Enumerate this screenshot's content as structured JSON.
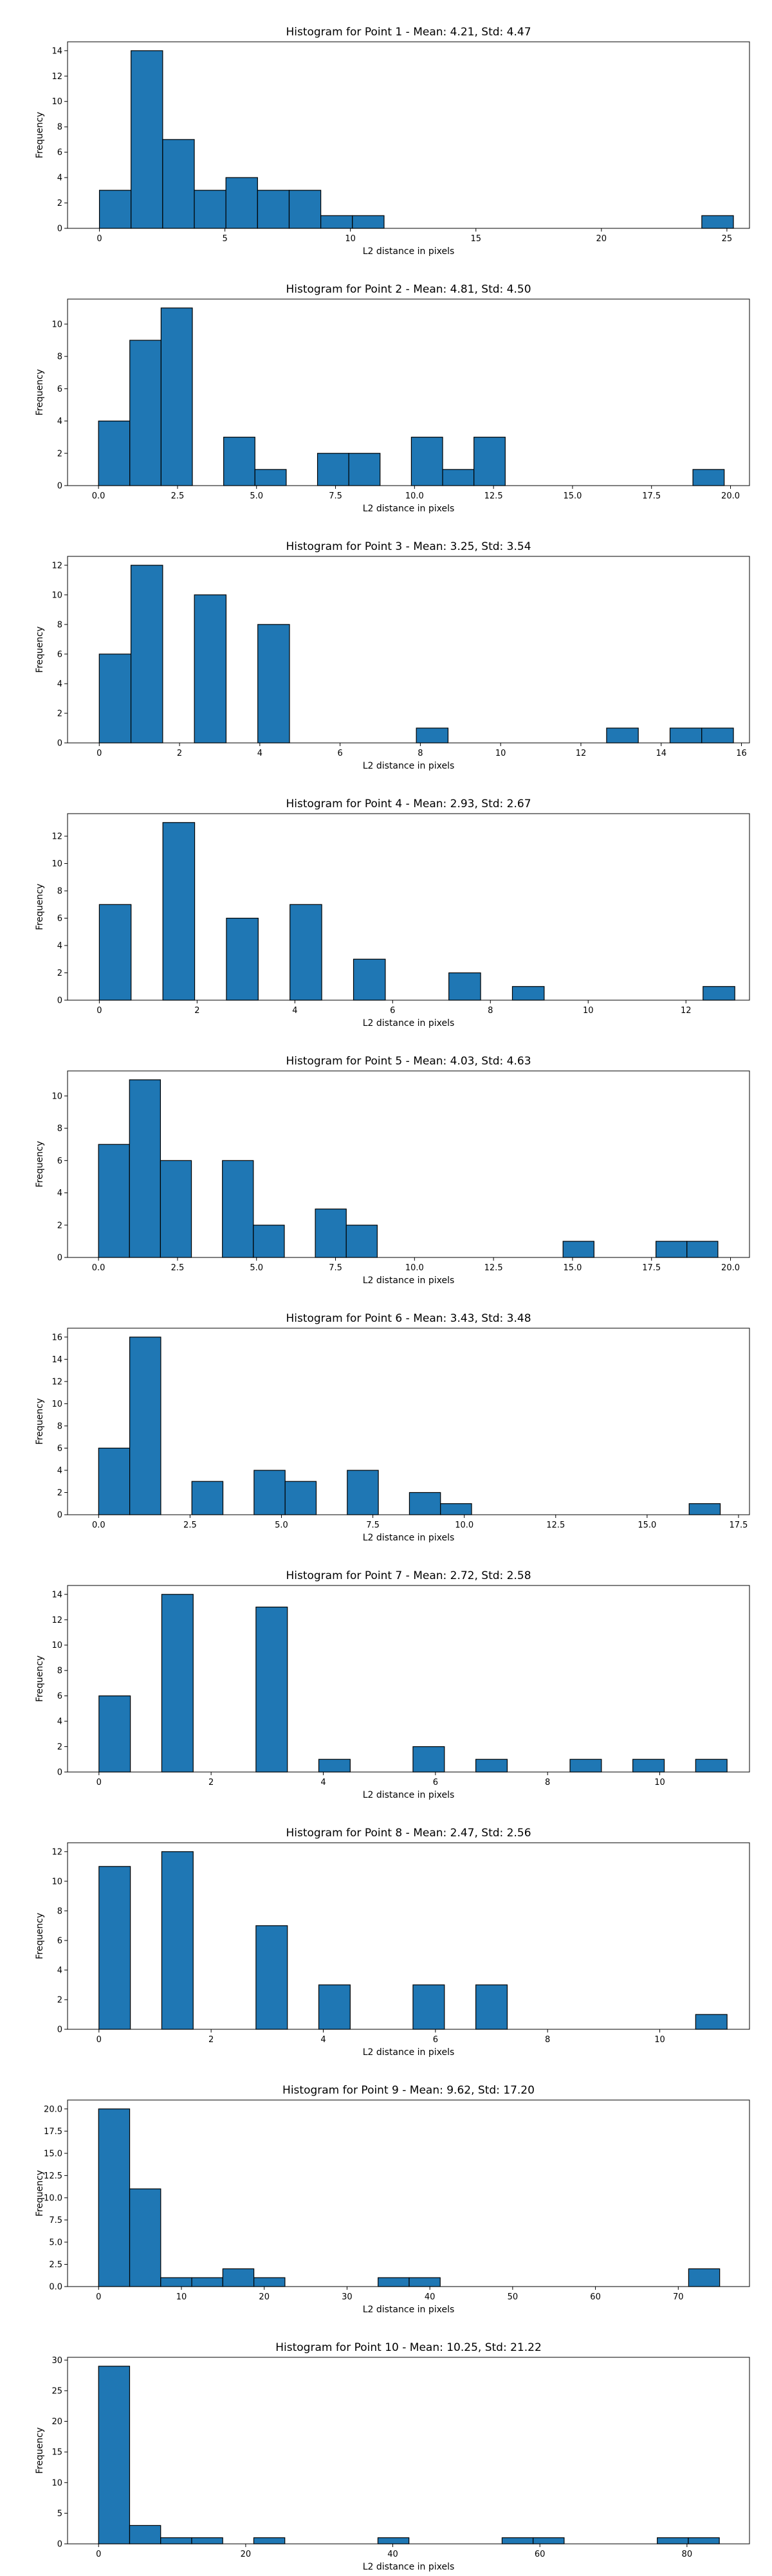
{
  "bar_color": "#1f77b4",
  "edge_color": "#000000",
  "chart_data": [
    {
      "type": "bar",
      "title": "Histogram for Point 1 - Mean: 4.21, Std: 4.47",
      "xlabel": "L2 distance in pixels",
      "ylabel": "Frequency",
      "xlim": [
        -1.27,
        25.9
      ],
      "ylim": [
        0,
        14.7
      ],
      "xticks": [
        0,
        5,
        10,
        15,
        20,
        25
      ],
      "xtick_labels": [
        "0",
        "5",
        "10",
        "15",
        "20",
        "25"
      ],
      "yticks": [
        0,
        2,
        4,
        6,
        8,
        10,
        12,
        14
      ],
      "ytick_labels": [
        "0",
        "2",
        "4",
        "6",
        "8",
        "10",
        "12",
        "14"
      ],
      "bins": [
        [
          0.0,
          1.26,
          3
        ],
        [
          1.26,
          2.52,
          14
        ],
        [
          2.52,
          3.78,
          7
        ],
        [
          3.78,
          5.04,
          3
        ],
        [
          5.04,
          6.3,
          4
        ],
        [
          6.3,
          7.56,
          3
        ],
        [
          7.56,
          8.82,
          3
        ],
        [
          8.82,
          10.08,
          1
        ],
        [
          10.08,
          11.34,
          1
        ],
        [
          24.0,
          25.26,
          1
        ]
      ]
    },
    {
      "type": "bar",
      "title": "Histogram for Point 2 - Mean: 4.81, Std: 4.50",
      "xlabel": "L2 distance in pixels",
      "ylabel": "Frequency",
      "xlim": [
        -0.98,
        20.6
      ],
      "ylim": [
        0,
        11.55
      ],
      "xticks": [
        0,
        2.5,
        5,
        7.5,
        10,
        12.5,
        15,
        17.5,
        20
      ],
      "xtick_labels": [
        "0.0",
        "2.5",
        "5.0",
        "7.5",
        "10.0",
        "12.5",
        "15.0",
        "17.5",
        "20.0"
      ],
      "yticks": [
        0,
        2,
        4,
        6,
        8,
        10
      ],
      "ytick_labels": [
        "0",
        "2",
        "4",
        "6",
        "8",
        "10"
      ],
      "bins": [
        [
          0.0,
          0.99,
          4
        ],
        [
          0.99,
          1.98,
          9
        ],
        [
          1.98,
          2.97,
          11
        ],
        [
          3.96,
          4.95,
          3
        ],
        [
          4.95,
          5.94,
          1
        ],
        [
          6.93,
          7.92,
          2
        ],
        [
          7.92,
          8.91,
          2
        ],
        [
          9.9,
          10.89,
          3
        ],
        [
          10.89,
          11.88,
          1
        ],
        [
          11.88,
          12.87,
          3
        ],
        [
          18.81,
          19.8,
          1
        ]
      ]
    },
    {
      "type": "bar",
      "title": "Histogram for Point 3 - Mean: 3.25, Std: 3.54",
      "xlabel": "L2 distance in pixels",
      "ylabel": "Frequency",
      "xlim": [
        -0.79,
        16.2
      ],
      "ylim": [
        0,
        12.6
      ],
      "xticks": [
        0,
        2,
        4,
        6,
        8,
        10,
        12,
        14,
        16
      ],
      "xtick_labels": [
        "0",
        "2",
        "4",
        "6",
        "8",
        "10",
        "12",
        "14",
        "16"
      ],
      "yticks": [
        0,
        2,
        4,
        6,
        8,
        10,
        12
      ],
      "ytick_labels": [
        "0",
        "2",
        "4",
        "6",
        "8",
        "10",
        "12"
      ],
      "bins": [
        [
          0.0,
          0.79,
          6
        ],
        [
          0.79,
          1.58,
          12
        ],
        [
          2.37,
          3.16,
          10
        ],
        [
          3.95,
          4.74,
          8
        ],
        [
          7.9,
          8.69,
          1
        ],
        [
          12.64,
          13.43,
          1
        ],
        [
          14.22,
          15.01,
          1
        ],
        [
          15.01,
          15.8,
          1
        ]
      ]
    },
    {
      "type": "bar",
      "title": "Histogram for Point 4 - Mean: 2.93, Std: 2.67",
      "xlabel": "L2 distance in pixels",
      "ylabel": "Frequency",
      "xlim": [
        -0.65,
        13.3
      ],
      "ylim": [
        0,
        13.65
      ],
      "xticks": [
        0,
        2,
        4,
        6,
        8,
        10,
        12
      ],
      "xtick_labels": [
        "0",
        "2",
        "4",
        "6",
        "8",
        "10",
        "12"
      ],
      "yticks": [
        0,
        2,
        4,
        6,
        8,
        10,
        12
      ],
      "ytick_labels": [
        "0",
        "2",
        "4",
        "6",
        "8",
        "10",
        "12"
      ],
      "bins": [
        [
          0.0,
          0.65,
          7
        ],
        [
          1.3,
          1.95,
          13
        ],
        [
          2.6,
          3.25,
          6
        ],
        [
          3.9,
          4.55,
          7
        ],
        [
          5.2,
          5.85,
          3
        ],
        [
          7.15,
          7.8,
          2
        ],
        [
          8.45,
          9.1,
          1
        ],
        [
          12.35,
          13.0,
          1
        ]
      ]
    },
    {
      "type": "bar",
      "title": "Histogram for Point 5 - Mean: 4.03, Std: 4.63",
      "xlabel": "L2 distance in pixels",
      "ylabel": "Frequency",
      "xlim": [
        -0.98,
        20.6
      ],
      "ylim": [
        0,
        11.55
      ],
      "xticks": [
        0,
        2.5,
        5,
        7.5,
        10,
        12.5,
        15,
        17.5,
        20
      ],
      "xtick_labels": [
        "0.0",
        "2.5",
        "5.0",
        "7.5",
        "10.0",
        "12.5",
        "15.0",
        "17.5",
        "20.0"
      ],
      "yticks": [
        0,
        2,
        4,
        6,
        8,
        10
      ],
      "ytick_labels": [
        "0",
        "2",
        "4",
        "6",
        "8",
        "10"
      ],
      "bins": [
        [
          0.0,
          0.98,
          7
        ],
        [
          0.98,
          1.96,
          11
        ],
        [
          1.96,
          2.94,
          6
        ],
        [
          3.92,
          4.9,
          6
        ],
        [
          4.9,
          5.88,
          2
        ],
        [
          6.86,
          7.84,
          3
        ],
        [
          7.84,
          8.82,
          2
        ],
        [
          14.7,
          15.68,
          1
        ],
        [
          17.64,
          18.62,
          1
        ],
        [
          18.62,
          19.6,
          1
        ]
      ]
    },
    {
      "type": "bar",
      "title": "Histogram for Point 6 - Mean: 3.43, Std: 3.48",
      "xlabel": "L2 distance in pixels",
      "ylabel": "Frequency",
      "xlim": [
        -0.85,
        17.8
      ],
      "ylim": [
        0,
        16.8
      ],
      "xticks": [
        0,
        2.5,
        5,
        7.5,
        10,
        12.5,
        15,
        17.5
      ],
      "xtick_labels": [
        "0.0",
        "2.5",
        "5.0",
        "7.5",
        "10.0",
        "12.5",
        "15.0",
        "17.5"
      ],
      "yticks": [
        0,
        2,
        4,
        6,
        8,
        10,
        12,
        14,
        16
      ],
      "ytick_labels": [
        "0",
        "2",
        "4",
        "6",
        "8",
        "10",
        "12",
        "14",
        "16"
      ],
      "bins": [
        [
          0.0,
          0.85,
          6
        ],
        [
          0.85,
          1.7,
          16
        ],
        [
          2.55,
          3.4,
          3
        ],
        [
          4.25,
          5.1,
          4
        ],
        [
          5.1,
          5.95,
          3
        ],
        [
          6.8,
          7.65,
          4
        ],
        [
          8.5,
          9.35,
          2
        ],
        [
          9.35,
          10.2,
          1
        ],
        [
          16.15,
          17.0,
          1
        ]
      ]
    },
    {
      "type": "bar",
      "title": "Histogram for Point 7 - Mean: 2.72, Std: 2.58",
      "xlabel": "L2 distance in pixels",
      "ylabel": "Frequency",
      "xlim": [
        -0.56,
        11.6
      ],
      "ylim": [
        0,
        14.7
      ],
      "xticks": [
        0,
        2,
        4,
        6,
        8,
        10
      ],
      "xtick_labels": [
        "0",
        "2",
        "4",
        "6",
        "8",
        "10"
      ],
      "yticks": [
        0,
        2,
        4,
        6,
        8,
        10,
        12,
        14
      ],
      "ytick_labels": [
        "0",
        "2",
        "4",
        "6",
        "8",
        "10",
        "12",
        "14"
      ],
      "bins": [
        [
          0.0,
          0.56,
          6
        ],
        [
          1.12,
          1.68,
          14
        ],
        [
          2.24,
          2.8,
          0
        ],
        [
          2.8,
          3.36,
          13
        ],
        [
          3.92,
          4.48,
          1
        ],
        [
          5.6,
          6.16,
          2
        ],
        [
          6.72,
          7.28,
          1
        ],
        [
          8.4,
          8.96,
          1
        ],
        [
          9.52,
          10.08,
          1
        ],
        [
          10.64,
          11.2,
          1
        ]
      ]
    },
    {
      "type": "bar",
      "title": "Histogram for Point 8 - Mean: 2.47, Std: 2.56",
      "xlabel": "L2 distance in pixels",
      "ylabel": "Frequency",
      "xlim": [
        -0.56,
        11.6
      ],
      "ylim": [
        0,
        12.6
      ],
      "xticks": [
        0,
        2,
        4,
        6,
        8,
        10
      ],
      "xtick_labels": [
        "0",
        "2",
        "4",
        "6",
        "8",
        "10"
      ],
      "yticks": [
        0,
        2,
        4,
        6,
        8,
        10,
        12
      ],
      "ytick_labels": [
        "0",
        "2",
        "4",
        "6",
        "8",
        "10",
        "12"
      ],
      "bins": [
        [
          0.0,
          0.56,
          11
        ],
        [
          1.12,
          1.68,
          12
        ],
        [
          2.8,
          3.36,
          7
        ],
        [
          3.92,
          4.48,
          3
        ],
        [
          5.6,
          6.16,
          3
        ],
        [
          6.72,
          7.28,
          3
        ],
        [
          10.64,
          11.2,
          1
        ]
      ]
    },
    {
      "type": "bar",
      "title": "Histogram for Point 9 - Mean: 9.62, Std: 17.20",
      "xlabel": "L2 distance in pixels",
      "ylabel": "Frequency",
      "xlim": [
        -3.75,
        78.6
      ],
      "ylim": [
        0,
        21.0
      ],
      "xticks": [
        0,
        10,
        20,
        30,
        40,
        50,
        60,
        70
      ],
      "xtick_labels": [
        "0",
        "10",
        "20",
        "30",
        "40",
        "50",
        "60",
        "70"
      ],
      "yticks": [
        0,
        2.5,
        5,
        7.5,
        10,
        12.5,
        15,
        17.5,
        20
      ],
      "ytick_labels": [
        "0.0",
        "2.5",
        "5.0",
        "7.5",
        "10.0",
        "12.5",
        "15.0",
        "17.5",
        "20.0"
      ],
      "bins": [
        [
          0.0,
          3.75,
          20
        ],
        [
          3.75,
          7.5,
          11
        ],
        [
          7.5,
          11.25,
          1
        ],
        [
          11.25,
          15.0,
          1
        ],
        [
          15.0,
          18.75,
          2
        ],
        [
          18.75,
          22.5,
          1
        ],
        [
          33.75,
          37.5,
          1
        ],
        [
          37.5,
          41.25,
          1
        ],
        [
          71.25,
          75.0,
          2
        ]
      ]
    },
    {
      "type": "bar",
      "title": "Histogram for Point 10 - Mean: 10.25, Std: 21.22",
      "xlabel": "L2 distance in pixels",
      "ylabel": "Frequency",
      "xlim": [
        -4.22,
        88.5
      ],
      "ylim": [
        0,
        30.45
      ],
      "xticks": [
        0,
        20,
        40,
        60,
        80
      ],
      "xtick_labels": [
        "0",
        "20",
        "40",
        "60",
        "80"
      ],
      "yticks": [
        0,
        5,
        10,
        15,
        20,
        25,
        30
      ],
      "ytick_labels": [
        "0",
        "5",
        "10",
        "15",
        "20",
        "25",
        "30"
      ],
      "bins": [
        [
          0.0,
          4.22,
          29
        ],
        [
          4.22,
          8.44,
          3
        ],
        [
          8.44,
          12.66,
          1
        ],
        [
          12.66,
          16.88,
          1
        ],
        [
          21.1,
          25.32,
          1
        ],
        [
          37.98,
          42.2,
          1
        ],
        [
          54.86,
          59.08,
          1
        ],
        [
          59.08,
          63.3,
          1
        ],
        [
          75.96,
          80.18,
          1
        ],
        [
          80.18,
          84.4,
          1
        ]
      ]
    }
  ]
}
